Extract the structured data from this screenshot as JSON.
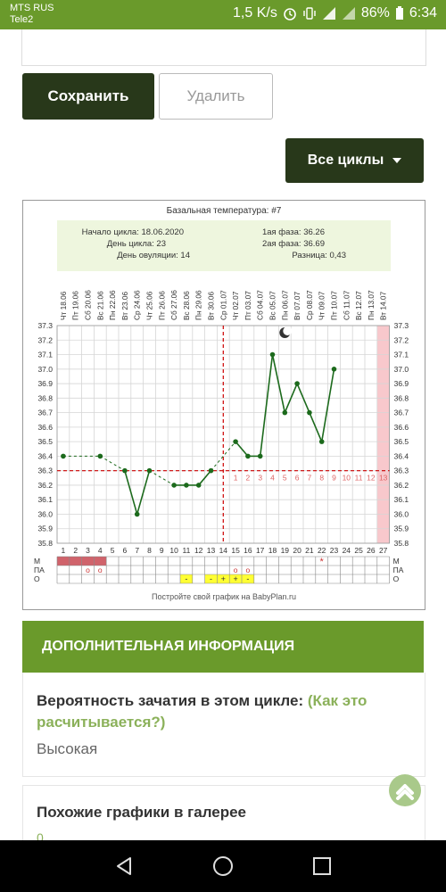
{
  "status_bar": {
    "carrier1": "MTS RUS",
    "carrier2": "Tele2",
    "speed": "1,5 K/s",
    "battery": "86%",
    "time": "6:34",
    "color": "#6a9a2b"
  },
  "actions": {
    "save_label": "Сохранить",
    "delete_label": "Удалить",
    "all_cycles_label": "Все циклы"
  },
  "chart_data": {
    "type": "line",
    "title": "Базальная температура: #7",
    "summary": {
      "start_label": "Начало цикла: 18.06.2020",
      "cycle_day_label": "День цикла: 23",
      "ovulation_day_label": "День овуляции: 14",
      "phase1_label": "1ая фаза: 36.26",
      "phase2_label": "2ая фаза: 36.69",
      "diff_label": "Разница: 0,43"
    },
    "dates": [
      "Чт 18.06",
      "Пт 19.06",
      "Сб 20.06",
      "Вс 21.06",
      "Пн 22.06",
      "Вт 23.06",
      "Ср 24.06",
      "Чт 25.06",
      "Пт 26.06",
      "Сб 27.06",
      "Вс 28.06",
      "Пн 29.06",
      "Вт 30.06",
      "Ср 01.07",
      "Чт 02.07",
      "Пт 03.07",
      "Сб 04.07",
      "Вс 05.07",
      "Пн 06.07",
      "Вт 07.07",
      "Ср 08.07",
      "Чт 09.07",
      "Пт 10.07",
      "Сб 11.07",
      "Вс 12.07",
      "Пн 13.07",
      "Вт 14.07"
    ],
    "days": [
      1,
      2,
      3,
      4,
      5,
      6,
      7,
      8,
      9,
      10,
      11,
      12,
      13,
      14,
      15,
      16,
      17,
      18,
      19,
      20,
      21,
      22,
      23,
      24,
      25,
      26,
      27
    ],
    "yticks": [
      "37.3",
      "37.2",
      "37.1",
      "37.0",
      "36.9",
      "36.8",
      "36.7",
      "36.6",
      "36.5",
      "36.4",
      "36.3",
      "36.2",
      "36.1",
      "36.0",
      "35.9",
      "35.8"
    ],
    "ylim": [
      35.8,
      37.3
    ],
    "temperatures": [
      36.4,
      null,
      null,
      36.4,
      null,
      36.3,
      36.0,
      36.3,
      null,
      36.2,
      36.2,
      36.2,
      36.3,
      null,
      36.5,
      36.4,
      36.4,
      37.1,
      36.7,
      36.9,
      36.7,
      36.5,
      37.0,
      null,
      null,
      null,
      null
    ],
    "coverline": 36.3,
    "ovulation_day": 14,
    "luteal_labels": [
      "1",
      "2",
      "3",
      "4",
      "5",
      "6",
      "7",
      "8",
      "9",
      "10",
      "11",
      "12",
      "13"
    ],
    "highlight_day": 27,
    "row_labels": [
      "М",
      "ПА",
      "О"
    ],
    "menstruation_days": [
      1,
      2,
      3,
      4
    ],
    "pa_marks": [
      {
        "day": 3,
        "text": "o"
      },
      {
        "day": 4,
        "text": "o"
      },
      {
        "day": 15,
        "text": "o"
      },
      {
        "day": 16,
        "text": "o"
      }
    ],
    "star_marks": [
      {
        "day": 22,
        "text": "*"
      }
    ],
    "o_marks": [
      {
        "day": 11,
        "text": "-"
      },
      {
        "day": 13,
        "text": "-"
      },
      {
        "day": 14,
        "text": "+"
      },
      {
        "day": 15,
        "text": "+"
      },
      {
        "day": 16,
        "text": "-"
      }
    ],
    "moon_day": 19,
    "moon_icon": "moon-icon",
    "footer": "Постройте свой график на BabyPlan.ru",
    "colors": {
      "line": "#1c6a1c",
      "dashed": "#1c6a1c",
      "coverline": "#cc0000",
      "menstruation": "#d0636b",
      "highlight": "#f8c8cc",
      "o_yellow": "#ffff33",
      "summary_bg": "#eef6de"
    }
  },
  "info": {
    "header": "ДОПОЛНИТЕЛЬНАЯ ИНФОРМАЦИЯ",
    "probability_label": "Вероятность зачатия в этом цикле:",
    "probability_link": "(Как это расчитывается?)",
    "probability_value": "Высокая"
  },
  "similar": {
    "title": "Похожие графики в галерее",
    "count": "0"
  },
  "nav": {
    "back_icon": "back-icon",
    "home_icon": "home-icon",
    "recents_icon": "recents-icon"
  }
}
